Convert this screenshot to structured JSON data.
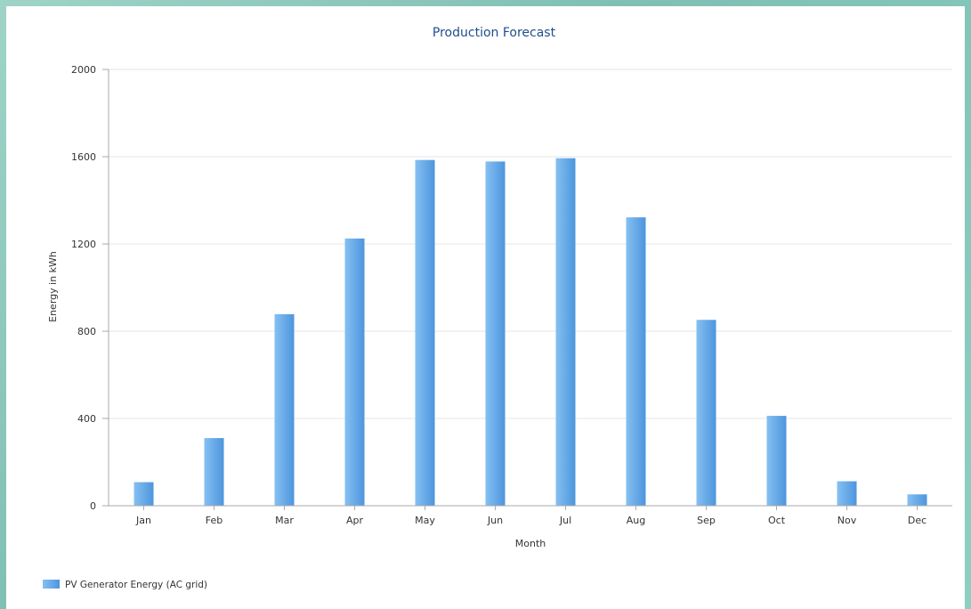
{
  "chart_data": {
    "type": "bar",
    "title": "Production Forecast",
    "xlabel": "Month",
    "ylabel": "Energy in kWh",
    "categories": [
      "Jan",
      "Feb",
      "Mar",
      "Apr",
      "May",
      "Jun",
      "Jul",
      "Aug",
      "Sep",
      "Oct",
      "Nov",
      "Dec"
    ],
    "series": [
      {
        "name": "PV Generator Energy (AC grid)",
        "values": [
          108,
          310,
          878,
          1225,
          1585,
          1578,
          1593,
          1322,
          852,
          412,
          112,
          52
        ],
        "color": "#5aa3e6"
      }
    ],
    "ylim": [
      0,
      2000
    ],
    "yticks": [
      0,
      400,
      800,
      1200,
      1600,
      2000
    ],
    "grid": true,
    "legend_position": "bottom-left"
  },
  "colors": {
    "bar_light": "#85c0f2",
    "bar_dark": "#4d95dd",
    "grid": "#e6e6e6",
    "axis": "#aaaaaa"
  }
}
